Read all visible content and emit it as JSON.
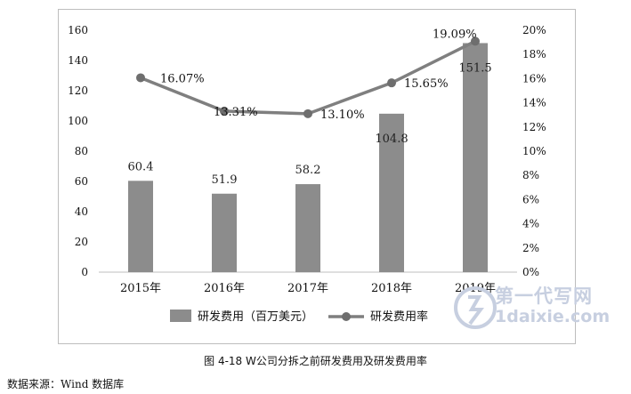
{
  "chart_data": {
    "type": "bar+line",
    "categories": [
      "2015年",
      "2016年",
      "2017年",
      "2018年",
      "2019年"
    ],
    "series": [
      {
        "name": "研发费用（百万美元）",
        "type": "bar",
        "axis": "left",
        "values": [
          60.4,
          51.9,
          58.2,
          104.8,
          151.5
        ],
        "labels": [
          "60.4",
          "51.9",
          "58.2",
          "104.8",
          "151.5"
        ]
      },
      {
        "name": "研发费用率",
        "type": "line",
        "axis": "right",
        "values": [
          16.07,
          13.31,
          13.1,
          15.65,
          19.09
        ],
        "labels": [
          "16.07%",
          "13.31%",
          "13.10%",
          "15.65%",
          "19.09%"
        ]
      }
    ],
    "y_left": {
      "min": 0,
      "max": 160,
      "step": 20,
      "ticks": [
        "0",
        "20",
        "40",
        "60",
        "80",
        "100",
        "120",
        "140",
        "160"
      ]
    },
    "y_right": {
      "min": 0,
      "max": 20,
      "step": 2,
      "ticks": [
        "0%",
        "2%",
        "4%",
        "6%",
        "8%",
        "10%",
        "12%",
        "14%",
        "16%",
        "18%",
        "20%"
      ]
    },
    "grid": false,
    "legend_position": "bottom",
    "colors": {
      "bar": "#8c8c8c",
      "line": "#7f7f7f",
      "marker": "#6e6e6e",
      "frame": "#bdbdbd"
    }
  },
  "caption": "图 4-18 W公司分拆之前研发费用及研发费用率",
  "source": "数据来源：Wind 数据库",
  "watermark": {
    "line1": "第一代写网",
    "line2": "1daixie.com"
  }
}
